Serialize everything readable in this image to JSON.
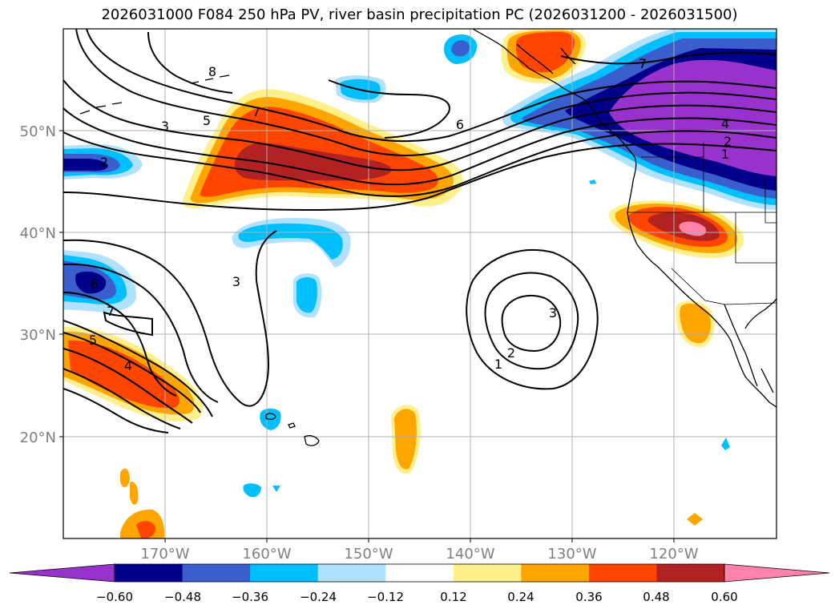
{
  "title": "2026031000 F084 250 hPa PV, river basin precipitation PC (2026031200 - 2026031500)",
  "lat_labels": [
    "50°N",
    "40°N",
    "30°N",
    "20°N"
  ],
  "lon_labels": [
    "170°W",
    "160°W",
    "150°W",
    "140°W",
    "130°W",
    "120°W"
  ],
  "colorbar": {
    "tick_labels": [
      "−0.60",
      "−0.48",
      "−0.36",
      "−0.24",
      "−0.12",
      "0.12",
      "0.24",
      "0.36",
      "0.48",
      "0.60"
    ],
    "colors": [
      "#9932cc",
      "#00008b",
      "#3a5fcd",
      "#00bfff",
      "#b0e2ff",
      "#ffffff",
      "#fff08b",
      "#ffa500",
      "#ff4500",
      "#b22222",
      "#ff82ab"
    ]
  },
  "contour_labels": [
    "8",
    "7",
    "5",
    "3",
    "6",
    "7",
    "4",
    "2",
    "1",
    "2",
    "3",
    "6",
    "5",
    "4",
    "3",
    "2",
    "1",
    "7"
  ]
}
